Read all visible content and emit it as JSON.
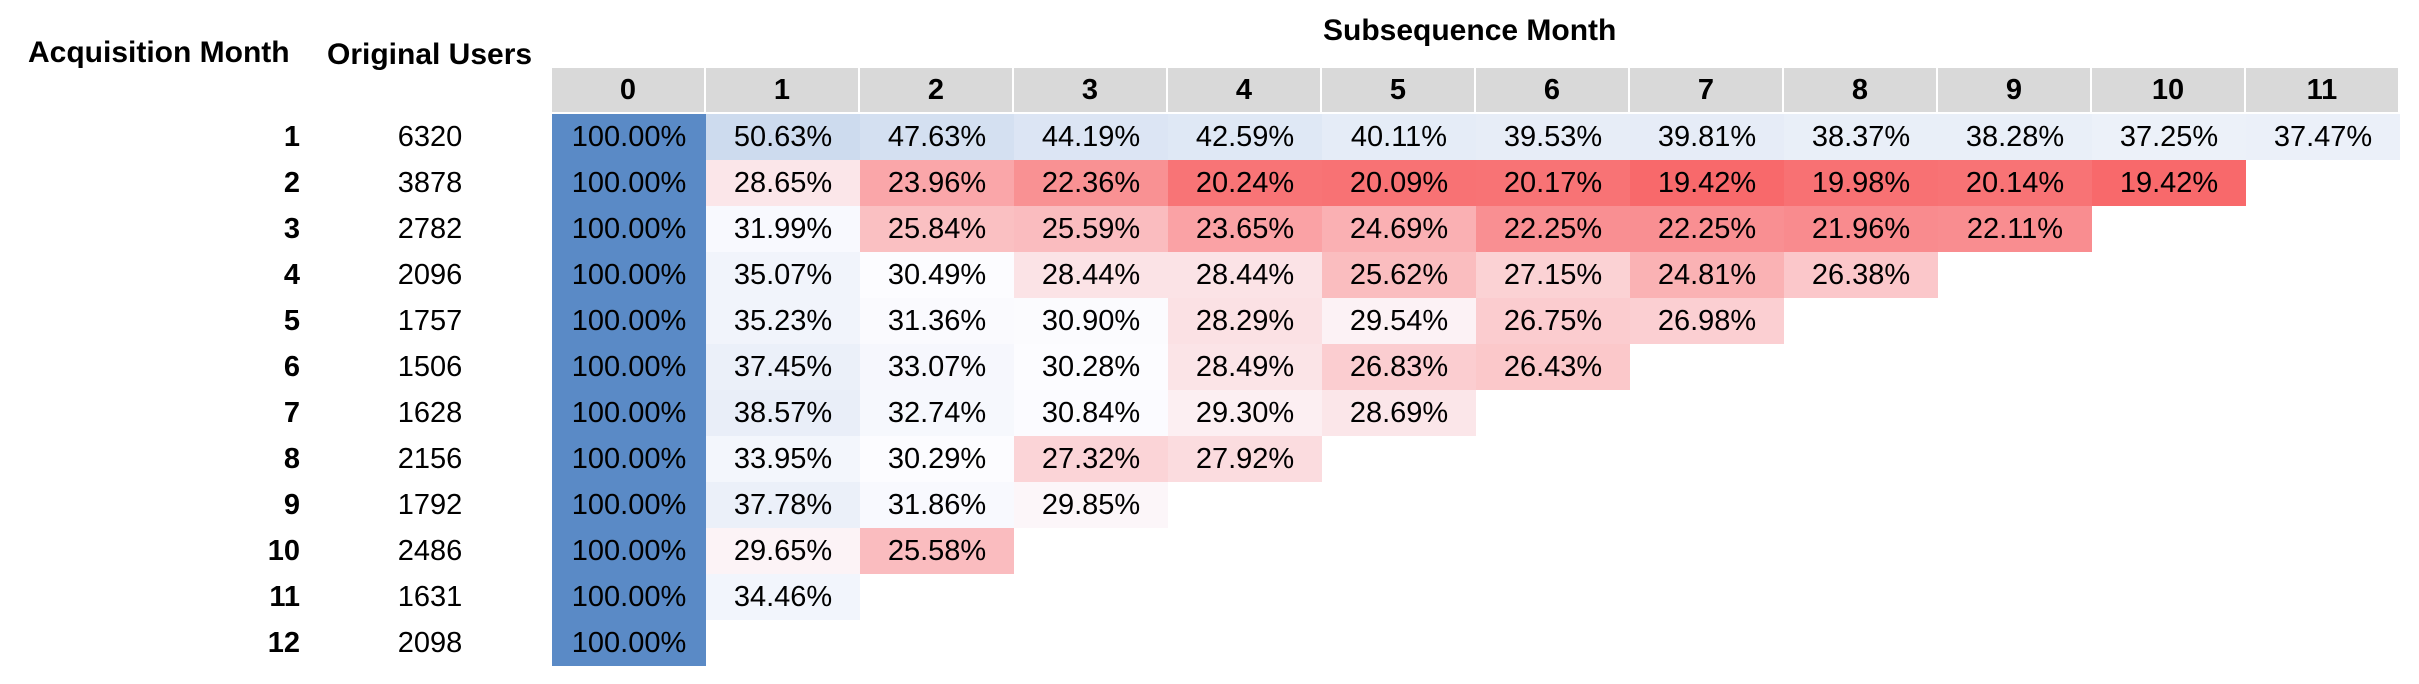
{
  "headers": {
    "acquisition": "Acquisition Month",
    "original_users": "Original Users",
    "subsequence": "Subsequence Month"
  },
  "chart_data": {
    "type": "heatmap",
    "columns": [
      "0",
      "1",
      "2",
      "3",
      "4",
      "5",
      "6",
      "7",
      "8",
      "9",
      "10",
      "11"
    ],
    "rows": [
      {
        "month": "1",
        "users": "6320",
        "values": [
          "100.00%",
          "50.63%",
          "47.63%",
          "44.19%",
          "42.59%",
          "40.11%",
          "39.53%",
          "39.81%",
          "38.37%",
          "38.28%",
          "37.25%",
          "37.47%"
        ]
      },
      {
        "month": "2",
        "users": "3878",
        "values": [
          "100.00%",
          "28.65%",
          "23.96%",
          "22.36%",
          "20.24%",
          "20.09%",
          "20.17%",
          "19.42%",
          "19.98%",
          "20.14%",
          "19.42%"
        ]
      },
      {
        "month": "3",
        "users": "2782",
        "values": [
          "100.00%",
          "31.99%",
          "25.84%",
          "25.59%",
          "23.65%",
          "24.69%",
          "22.25%",
          "22.25%",
          "21.96%",
          "22.11%"
        ]
      },
      {
        "month": "4",
        "users": "2096",
        "values": [
          "100.00%",
          "35.07%",
          "30.49%",
          "28.44%",
          "28.44%",
          "25.62%",
          "27.15%",
          "24.81%",
          "26.38%"
        ]
      },
      {
        "month": "5",
        "users": "1757",
        "values": [
          "100.00%",
          "35.23%",
          "31.36%",
          "30.90%",
          "28.29%",
          "29.54%",
          "26.75%",
          "26.98%"
        ]
      },
      {
        "month": "6",
        "users": "1506",
        "values": [
          "100.00%",
          "37.45%",
          "33.07%",
          "30.28%",
          "28.49%",
          "26.83%",
          "26.43%"
        ]
      },
      {
        "month": "7",
        "users": "1628",
        "values": [
          "100.00%",
          "38.57%",
          "32.74%",
          "30.84%",
          "29.30%",
          "28.69%"
        ]
      },
      {
        "month": "8",
        "users": "2156",
        "values": [
          "100.00%",
          "33.95%",
          "30.29%",
          "27.32%",
          "27.92%"
        ]
      },
      {
        "month": "9",
        "users": "1792",
        "values": [
          "100.00%",
          "37.78%",
          "31.86%",
          "29.85%"
        ]
      },
      {
        "month": "10",
        "users": "2486",
        "values": [
          "100.00%",
          "29.65%",
          "25.58%"
        ]
      },
      {
        "month": "11",
        "users": "1631",
        "values": [
          "100.00%",
          "34.46%"
        ]
      },
      {
        "month": "12",
        "users": "2098",
        "values": [
          "100.00%"
        ]
      }
    ],
    "colors": {
      "high": "#5a8ac6",
      "mid": "#fcfcff",
      "low": "#f8696b",
      "header_bg": "#d9d9d9"
    }
  }
}
